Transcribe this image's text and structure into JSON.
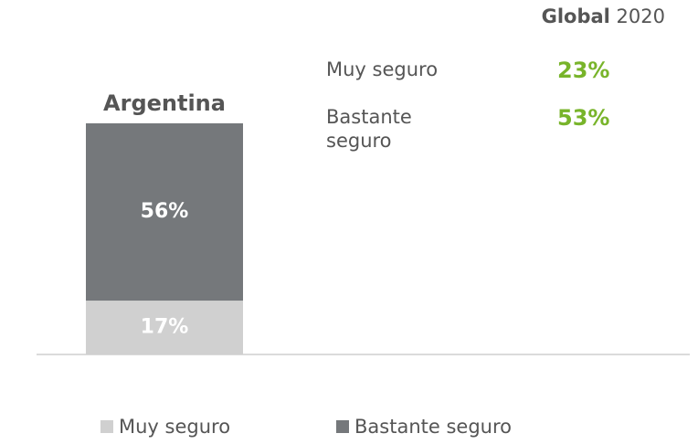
{
  "chart_data": {
    "type": "stacked_bar",
    "categories": [
      "Argentina"
    ],
    "series": [
      {
        "name": "Muy seguro",
        "color": "#d0d0d0",
        "values": [
          17
        ],
        "value_labels": [
          "17%"
        ]
      },
      {
        "name": "Bastante seguro",
        "color": "#75787b",
        "values": [
          56
        ],
        "value_labels": [
          "56%"
        ]
      }
    ]
  },
  "global_panel": {
    "title": "Global",
    "year": "2020",
    "color": "#78b42a",
    "items": [
      {
        "label": "Muy seguro",
        "value": 23,
        "value_label": "23%"
      },
      {
        "label": "Bastante seguro",
        "value": 53,
        "value_label": "53%"
      }
    ]
  }
}
